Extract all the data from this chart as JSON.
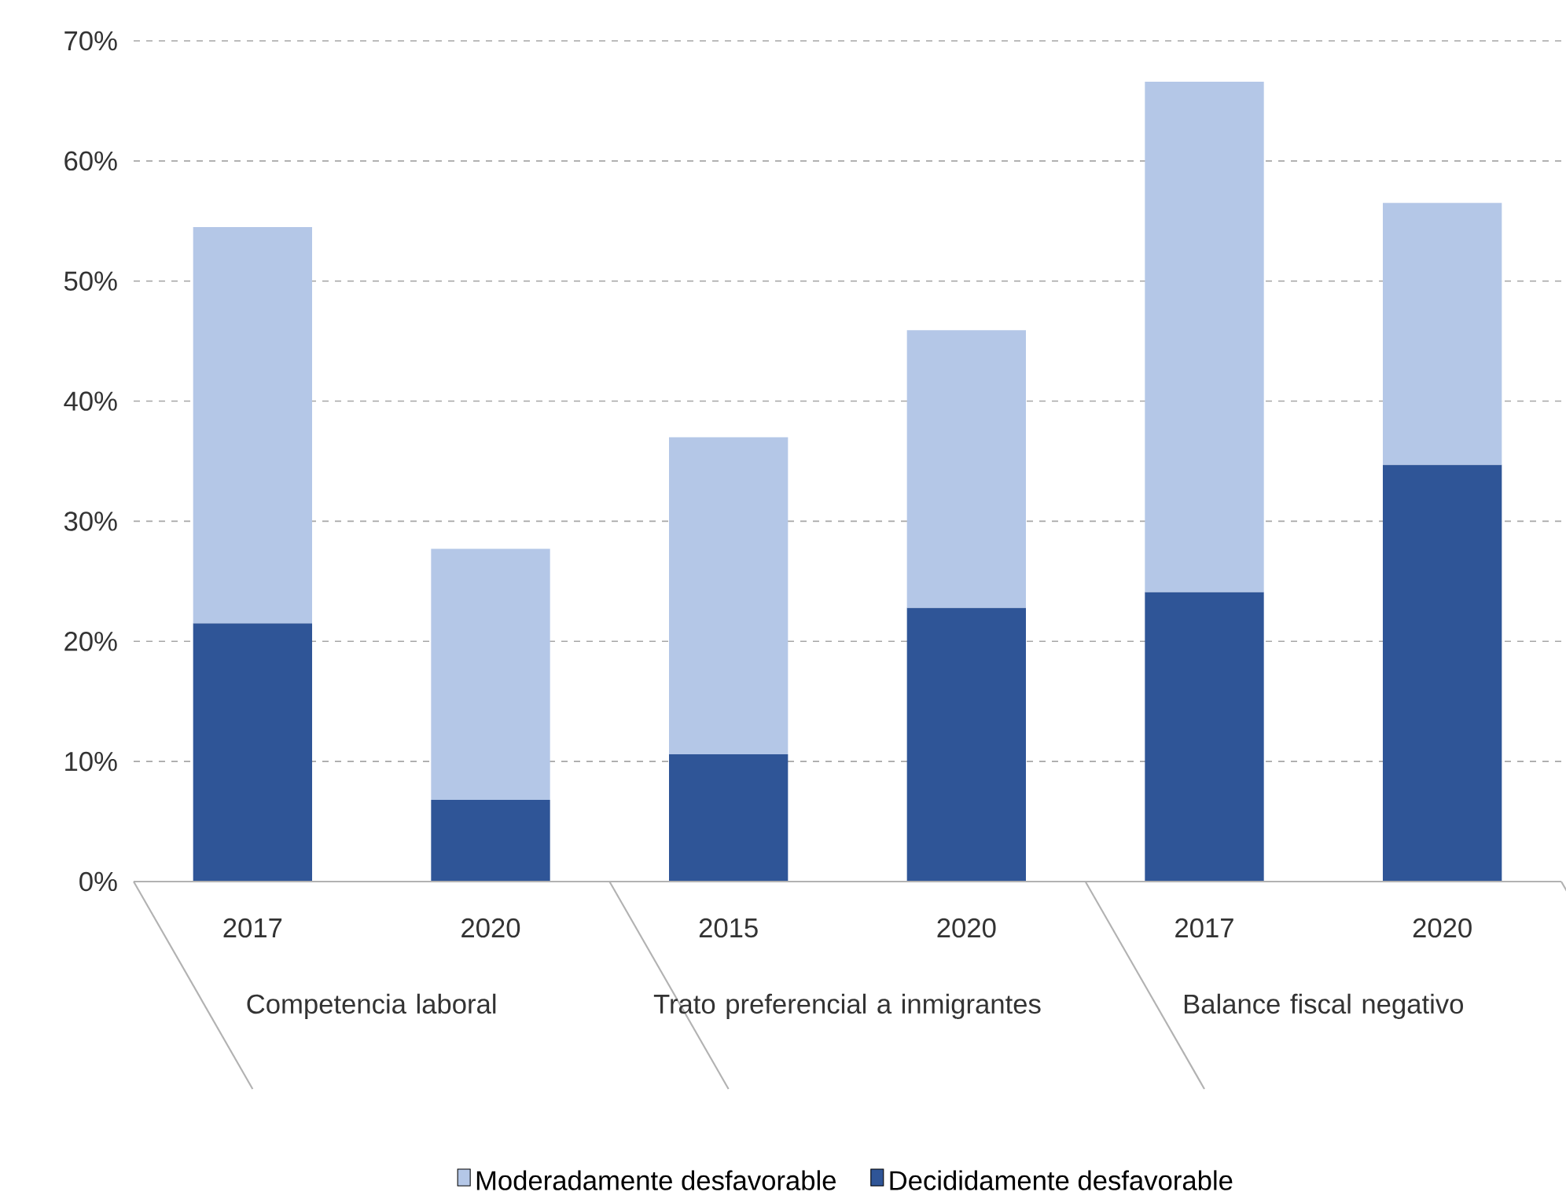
{
  "chart_data": {
    "type": "bar",
    "stacked": true,
    "categories": [
      "2017",
      "2020",
      "2015",
      "2020",
      "2017",
      "2020"
    ],
    "annotations": [
      "Competencia laboral",
      "Trato preferencial a inmigrantes",
      "Balance fiscal negativo"
    ],
    "series": [
      {
        "name": "Decididamente desfavorable",
        "color": "#2f5597",
        "values": [
          21.5,
          6.8,
          10.6,
          22.8,
          24.1,
          34.7
        ]
      },
      {
        "name": "Moderadamente desfavorable",
        "color": "#b4c7e7",
        "values": [
          33.0,
          20.9,
          26.4,
          23.1,
          42.5,
          21.8
        ]
      }
    ],
    "ylim": [
      0,
      70
    ],
    "yticks": [
      {
        "value": 0,
        "label": "0%"
      },
      {
        "value": 10,
        "label": "10%"
      },
      {
        "value": 20,
        "label": "20%"
      },
      {
        "value": 30,
        "label": "30%"
      },
      {
        "value": 40,
        "label": "40%"
      },
      {
        "value": 50,
        "label": "50%"
      },
      {
        "value": 60,
        "label": "60%"
      },
      {
        "value": 70,
        "label": "70%"
      }
    ],
    "grid": "y",
    "legend": "bottom"
  }
}
